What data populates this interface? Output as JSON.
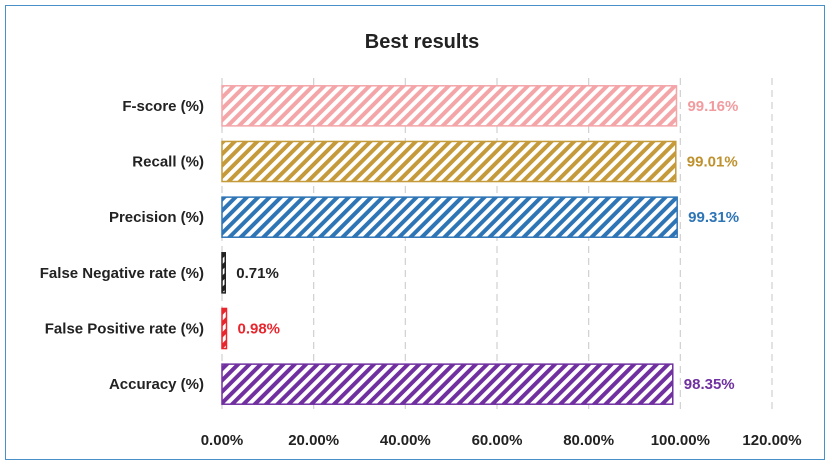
{
  "chart_data": {
    "type": "bar",
    "orientation": "horizontal",
    "title": "Best results",
    "xlabel": "",
    "ylabel": "",
    "xlim": [
      0,
      120
    ],
    "x_ticks": [
      0,
      20,
      40,
      60,
      80,
      100,
      120
    ],
    "x_tick_labels": [
      "0.00%",
      "20.00%",
      "40.00%",
      "60.00%",
      "80.00%",
      "100.00%",
      "120.00%"
    ],
    "grid": "vertical dashed",
    "legend": "none",
    "categories": [
      "F-score (%)",
      "Recall (%)",
      "Precision (%)",
      "False Negative rate (%)",
      "False Positive rate (%)",
      "Accuracy (%)"
    ],
    "values": [
      99.16,
      99.01,
      99.31,
      0.71,
      0.98,
      98.35
    ],
    "data_labels": [
      "99.16%",
      "99.01%",
      "99.31%",
      "0.71%",
      "0.98%",
      "98.35%"
    ],
    "colors": [
      "#f4a5a8",
      "#c49a3a",
      "#2e75b6",
      "#222222",
      "#e8262e",
      "#7030a0"
    ],
    "label_colors": [
      "#f29b9f",
      "#bf912d",
      "#2e75b6",
      "#222222",
      "#e8262e",
      "#7030a0"
    ],
    "fill_pattern": "diagonal-stripes"
  }
}
